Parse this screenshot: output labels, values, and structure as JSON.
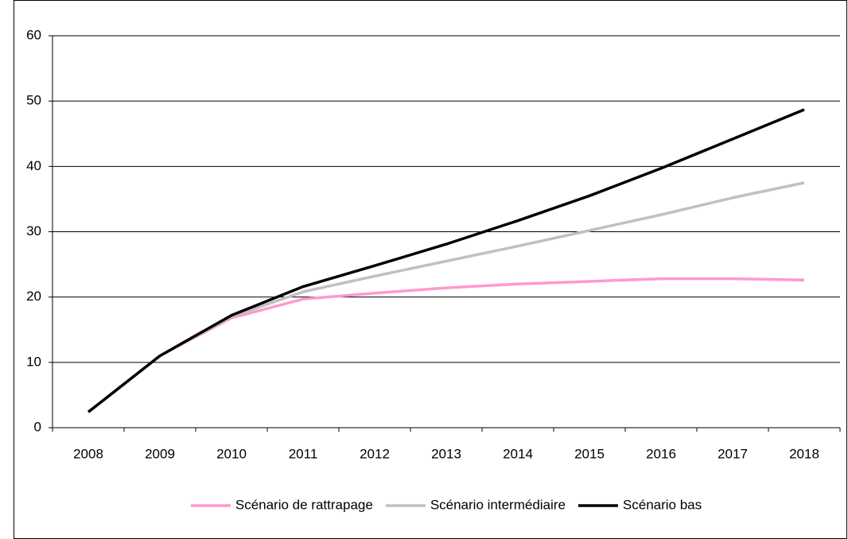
{
  "chart_data": {
    "type": "line",
    "categories": [
      "2008",
      "2009",
      "2010",
      "2011",
      "2012",
      "2013",
      "2014",
      "2015",
      "2016",
      "2017",
      "2018"
    ],
    "series": [
      {
        "name": "Scénario de rattrapage",
        "color": "#ff99cc",
        "values": [
          2.4,
          11,
          16.8,
          19.7,
          20.6,
          21.4,
          22.0,
          22.4,
          22.8,
          22.8,
          22.6
        ]
      },
      {
        "name": "Scénario intermédiaire",
        "color": "#c0c0c0",
        "values": [
          2.4,
          11,
          17.0,
          20.8,
          23.2,
          25.5,
          27.8,
          30.2,
          32.6,
          35.2,
          37.5
        ]
      },
      {
        "name": "Scénario bas",
        "color": "#000000",
        "values": [
          2.4,
          11,
          17.2,
          21.6,
          24.8,
          28.1,
          31.7,
          35.5,
          39.7,
          44.2,
          48.7
        ]
      }
    ],
    "ylim": [
      0,
      60
    ],
    "yticks": [
      0,
      10,
      20,
      30,
      40,
      50,
      60
    ],
    "grid": true,
    "legend": "bottom"
  }
}
